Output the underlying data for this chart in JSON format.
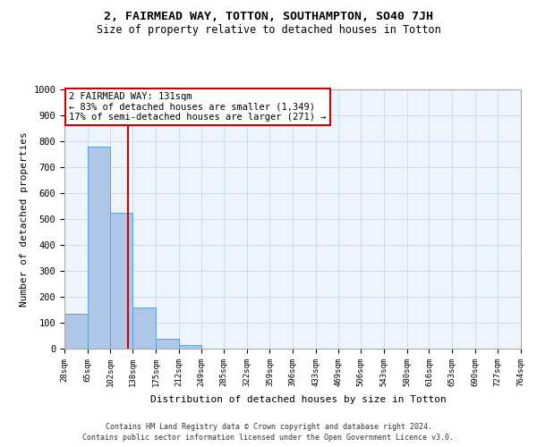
{
  "title": "2, FAIRMEAD WAY, TOTTON, SOUTHAMPTON, SO40 7JH",
  "subtitle": "Size of property relative to detached houses in Totton",
  "xlabel": "Distribution of detached houses by size in Totton",
  "ylabel": "Number of detached properties",
  "footer1": "Contains HM Land Registry data © Crown copyright and database right 2024.",
  "footer2": "Contains public sector information licensed under the Open Government Licence v3.0.",
  "annotation_line1": "2 FAIRMEAD WAY: 131sqm",
  "annotation_line2": "← 83% of detached houses are smaller (1,349)",
  "annotation_line3": "17% of semi-detached houses are larger (271) →",
  "property_size": 131,
  "red_line_x": 131,
  "bin_edges": [
    28,
    65,
    102,
    138,
    175,
    212,
    249,
    285,
    322,
    359,
    396,
    433,
    469,
    506,
    543,
    580,
    616,
    653,
    690,
    727,
    764
  ],
  "bar_heights": [
    133,
    778,
    525,
    158,
    37,
    13,
    0,
    0,
    0,
    0,
    0,
    0,
    0,
    0,
    0,
    0,
    0,
    0,
    0,
    0
  ],
  "bar_color": "#aec6e8",
  "bar_edge_color": "#5a9fd4",
  "red_line_color": "#cc0000",
  "grid_color": "#ccddee",
  "bg_color": "#eef4fb",
  "ylim": [
    0,
    1000
  ],
  "yticks": [
    0,
    100,
    200,
    300,
    400,
    500,
    600,
    700,
    800,
    900,
    1000
  ]
}
